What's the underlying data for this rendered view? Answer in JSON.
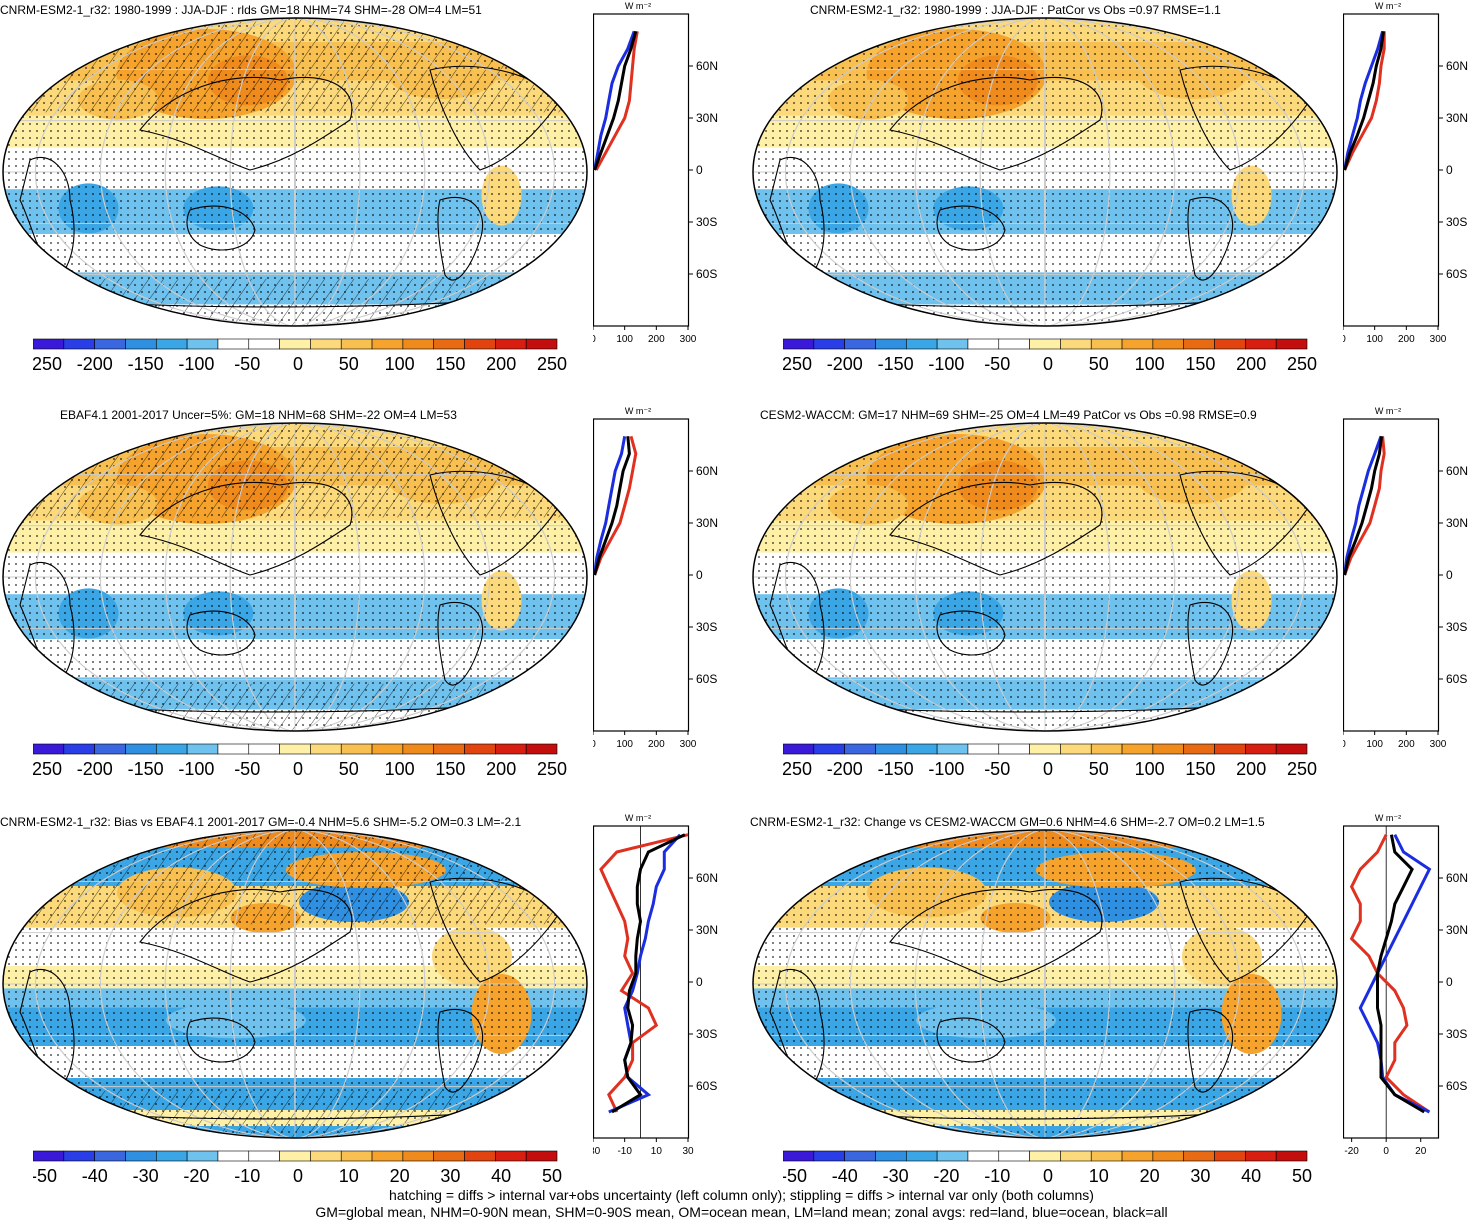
{
  "colors": {
    "land": "#e03020",
    "ocean": "#1a2de0",
    "all": "#000000",
    "scale_mean": [
      "#3a1ad8",
      "#2a3ee8",
      "#3a66e0",
      "#2f8fe0",
      "#3aa6e6",
      "#6fc1ee",
      "#ffffff",
      "#ffffff",
      "#fff0a8",
      "#fcd97a",
      "#f8c050",
      "#f5a32c",
      "#ef8a1c",
      "#e86a12",
      "#e24410",
      "#d81e10",
      "#c40e0e"
    ],
    "scale_diff": [
      "#3a1ad8",
      "#2a3ee8",
      "#3a66e0",
      "#2f8fe0",
      "#3aa6e6",
      "#6fc1ee",
      "#ffffff",
      "#ffffff",
      "#fff0a8",
      "#fcd97a",
      "#f8c050",
      "#f5a32c",
      "#ef8a1c",
      "#e86a12",
      "#e24410",
      "#d81e10",
      "#c40e0e"
    ]
  },
  "lat_ticks": [
    "60N",
    "30N",
    "0",
    "30S",
    "60S"
  ],
  "panels": [
    {
      "title": "CNRM-ESM2-1_r32: 1980-1999 : JJA-DJF : rlds GM=18 NHM=74 SHM=-28 OM=4 LM=51",
      "units": "W m⁻²",
      "colorbar_labels": [
        "-250",
        "-200",
        "-150",
        "-100",
        "-50",
        "0",
        "50",
        "100",
        "150",
        "200",
        "250"
      ],
      "zonal_xticks": [
        "0",
        "100",
        "200",
        "300"
      ]
    },
    {
      "title": "CNRM-ESM2-1_r32: 1980-1999 : JJA-DJF : PatCor vs Obs =0.97 RMSE=1.1",
      "units": "W m⁻²",
      "colorbar_labels": [
        "-250",
        "-200",
        "-150",
        "-100",
        "-50",
        "0",
        "50",
        "100",
        "150",
        "200",
        "250"
      ],
      "zonal_xticks": [
        "0",
        "100",
        "200",
        "300"
      ]
    },
    {
      "title": "EBAF4.1 2001-2017 Uncer=5%: GM=18 NHM=68 SHM=-22 OM=4 LM=53",
      "units": "W m⁻²",
      "colorbar_labels": [
        "-250",
        "-200",
        "-150",
        "-100",
        "-50",
        "0",
        "50",
        "100",
        "150",
        "200",
        "250"
      ],
      "zonal_xticks": [
        "0",
        "100",
        "200",
        "300"
      ]
    },
    {
      "title": "CESM2-WACCM: GM=17 NHM=69 SHM=-25 OM=4 LM=49 PatCor vs Obs =0.98 RMSE=0.9",
      "units": "W m⁻²",
      "colorbar_labels": [
        "-250",
        "-200",
        "-150",
        "-100",
        "-50",
        "0",
        "50",
        "100",
        "150",
        "200",
        "250"
      ],
      "zonal_xticks": [
        "0",
        "100",
        "200",
        "300"
      ]
    },
    {
      "title": "CNRM-ESM2-1_r32: Bias vs EBAF4.1 2001-2017 GM=-0.4 NHM=5.6 SHM=-5.2 OM=0.3 LM=-2.1",
      "units": "W m⁻²",
      "colorbar_labels": [
        "-50",
        "-40",
        "-30",
        "-20",
        "-10",
        "0",
        "10",
        "20",
        "30",
        "40",
        "50"
      ],
      "zonal_xticks": [
        "-30",
        "-10",
        "10",
        "30"
      ]
    },
    {
      "title": "CNRM-ESM2-1_r32: Change vs CESM2-WACCM GM=0.6 NHM=4.6 SHM=-2.7 OM=0.2 LM=1.5",
      "units": "W m⁻²",
      "colorbar_labels": [
        "-50",
        "-40",
        "-30",
        "-20",
        "-10",
        "0",
        "10",
        "20",
        "30",
        "40",
        "50"
      ],
      "zonal_xticks": [
        "-20",
        "0",
        "20"
      ]
    }
  ],
  "footer": {
    "line1": "hatching = diffs > internal var+obs uncertainty (left column only); stippling = diffs > internal var only (both columns)",
    "line2": "GM=global mean, NHM=0-90N mean, SHM=0-90S mean, OM=ocean mean, LM=land mean; zonal avgs: red=land, blue=ocean, black=all"
  },
  "chart_data": [
    {
      "type": "heatmap",
      "title": "CNRM-ESM2-1_r32: 1980-1999 : JJA-DJF : rlds GM=18 NHM=74 SHM=-28 OM=4 LM=51",
      "colorbar": [
        -250,
        -200,
        -150,
        -100,
        -50,
        0,
        50,
        100,
        150,
        200,
        250
      ],
      "zonal_mean": {
        "lat": [
          80,
          70,
          60,
          50,
          40,
          30,
          20,
          10,
          0,
          -10,
          -20,
          -30,
          -40,
          -50,
          -60,
          -70,
          -80
        ],
        "land": [
          140,
          130,
          125,
          120,
          115,
          100,
          70,
          40,
          10,
          null,
          null,
          null,
          null,
          null,
          null,
          null,
          null
        ],
        "ocean": [
          130,
          110,
          80,
          60,
          50,
          40,
          25,
          15,
          5,
          null,
          null,
          null,
          null,
          null,
          null,
          null,
          null
        ],
        "all": [
          135,
          120,
          100,
          90,
          80,
          65,
          45,
          25,
          5,
          null,
          null,
          null,
          null,
          null,
          null,
          null,
          null
        ]
      },
      "zonal_xlim": [
        0,
        300
      ]
    },
    {
      "type": "heatmap",
      "title": "CNRM-ESM2-1_r32: 1980-1999 : JJA-DJF : PatCor vs Obs =0.97 RMSE=1.1",
      "colorbar": [
        -250,
        -200,
        -150,
        -100,
        -50,
        0,
        50,
        100,
        150,
        200,
        250
      ],
      "zonal_mean": {
        "lat": [
          80,
          70,
          60,
          50,
          40,
          30,
          20,
          10,
          0
        ],
        "land": [
          130,
          130,
          120,
          115,
          105,
          90,
          60,
          30,
          5
        ],
        "ocean": [
          125,
          110,
          90,
          70,
          55,
          45,
          30,
          15,
          5
        ],
        "all": [
          128,
          120,
          105,
          95,
          80,
          65,
          45,
          22,
          5
        ]
      },
      "zonal_xlim": [
        0,
        300
      ]
    },
    {
      "type": "heatmap",
      "title": "EBAF4.1 2001-2017 Uncer=5%: GM=18 NHM=68 SHM=-22 OM=4 LM=53",
      "colorbar": [
        -250,
        -200,
        -150,
        -100,
        -50,
        0,
        50,
        100,
        150,
        200,
        250
      ],
      "zonal_mean": {
        "lat": [
          80,
          70,
          60,
          50,
          40,
          30,
          20,
          10,
          0
        ],
        "land": [
          120,
          135,
          125,
          115,
          100,
          85,
          55,
          25,
          5
        ],
        "ocean": [
          100,
          90,
          70,
          60,
          50,
          40,
          25,
          12,
          5
        ],
        "all": [
          110,
          115,
          95,
          85,
          75,
          60,
          40,
          20,
          5
        ]
      },
      "zonal_xlim": [
        0,
        300
      ]
    },
    {
      "type": "heatmap",
      "title": "CESM2-WACCM: GM=17 NHM=69 SHM=-25 OM=4 LM=49 PatCor vs Obs =0.98 RMSE=0.9",
      "colorbar": [
        -250,
        -200,
        -150,
        -100,
        -50,
        0,
        50,
        100,
        150,
        200,
        250
      ],
      "zonal_mean": {
        "lat": [
          80,
          70,
          60,
          50,
          40,
          30,
          20,
          10,
          0
        ],
        "land": [
          125,
          130,
          120,
          115,
          100,
          85,
          55,
          25,
          5
        ],
        "ocean": [
          120,
          100,
          80,
          65,
          50,
          40,
          25,
          12,
          5
        ],
        "all": [
          122,
          115,
          100,
          90,
          75,
          60,
          40,
          18,
          5
        ]
      },
      "zonal_xlim": [
        0,
        300
      ]
    },
    {
      "type": "heatmap",
      "title": "CNRM-ESM2-1_r32: Bias vs EBAF4.1 2001-2017 GM=-0.4 NHM=5.6 SHM=-5.2 OM=0.3 LM=-2.1",
      "colorbar": [
        -50,
        -40,
        -30,
        -20,
        -10,
        0,
        10,
        20,
        30,
        40,
        50
      ],
      "zonal_mean": {
        "lat": [
          85,
          75,
          65,
          55,
          45,
          35,
          25,
          15,
          5,
          -5,
          -15,
          -25,
          -35,
          -45,
          -55,
          -65,
          -75
        ],
        "land": [
          30,
          -15,
          -25,
          -20,
          -15,
          -10,
          -8,
          -10,
          -5,
          -12,
          5,
          10,
          -5,
          -5,
          -10,
          -20,
          -15
        ],
        "ocean": [
          25,
          15,
          15,
          10,
          8,
          5,
          3,
          0,
          -2,
          -5,
          -10,
          -8,
          -6,
          -10,
          -8,
          5,
          -20
        ],
        "all": [
          28,
          5,
          0,
          -2,
          -2,
          0,
          -2,
          -3,
          -3,
          -7,
          -8,
          -5,
          -6,
          -10,
          -8,
          0,
          -18
        ]
      },
      "zonal_xlim": [
        -30,
        30
      ]
    },
    {
      "type": "heatmap",
      "title": "CNRM-ESM2-1_r32: Change vs CESM2-WACCM GM=0.6 NHM=4.6 SHM=-2.7 OM=0.2 LM=1.5",
      "colorbar": [
        -50,
        -40,
        -30,
        -20,
        -10,
        0,
        10,
        20,
        30,
        40,
        50
      ],
      "zonal_mean": {
        "lat": [
          85,
          75,
          65,
          55,
          45,
          35,
          25,
          15,
          5,
          -5,
          -15,
          -25,
          -35,
          -45,
          -55,
          -65,
          -75
        ],
        "land": [
          0,
          -5,
          -15,
          -20,
          -15,
          -15,
          -20,
          -10,
          -5,
          5,
          10,
          12,
          5,
          5,
          0,
          10,
          25
        ],
        "ocean": [
          5,
          10,
          25,
          20,
          15,
          10,
          5,
          0,
          -5,
          -10,
          -15,
          -10,
          -5,
          -3,
          -2,
          5,
          25
        ],
        "all": [
          3,
          5,
          15,
          10,
          5,
          3,
          0,
          -3,
          -5,
          -5,
          -5,
          -3,
          -3,
          -3,
          -3,
          5,
          22
        ]
      },
      "zonal_xlim": [
        -25,
        30
      ]
    }
  ]
}
